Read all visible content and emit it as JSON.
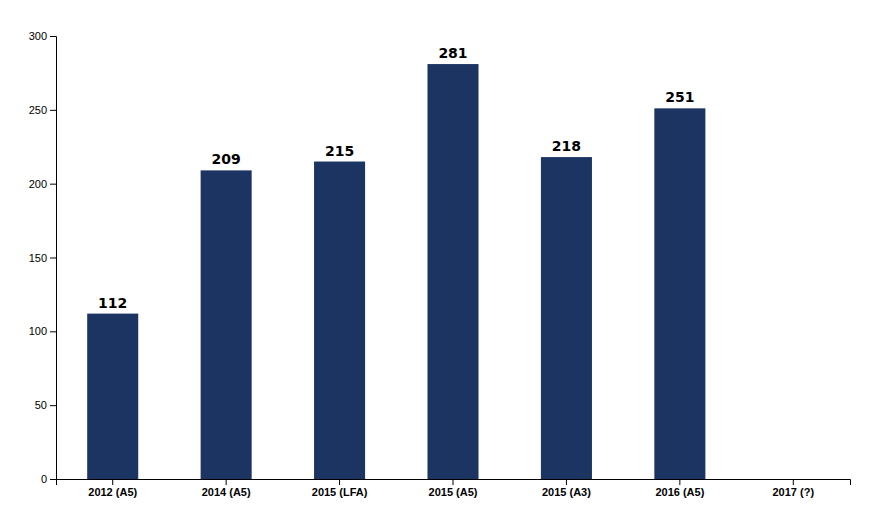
{
  "chart_data": {
    "type": "bar",
    "categories": [
      "2012 (A5)",
      "2014 (A5)",
      "2015 (LFA)",
      "2015 (A5)",
      "2015 (A3)",
      "2016 (A5)",
      "2017 (?)"
    ],
    "values": [
      112,
      209,
      215,
      281,
      218,
      251,
      0
    ],
    "value_labels": [
      "112",
      "209",
      "215",
      "281",
      "218",
      "251",
      null
    ],
    "color": "#1c3461",
    "ylim": [
      0,
      300
    ],
    "yticks": [
      0,
      50,
      100,
      150,
      200,
      250,
      300
    ],
    "grid": false,
    "data_labels": true
  }
}
